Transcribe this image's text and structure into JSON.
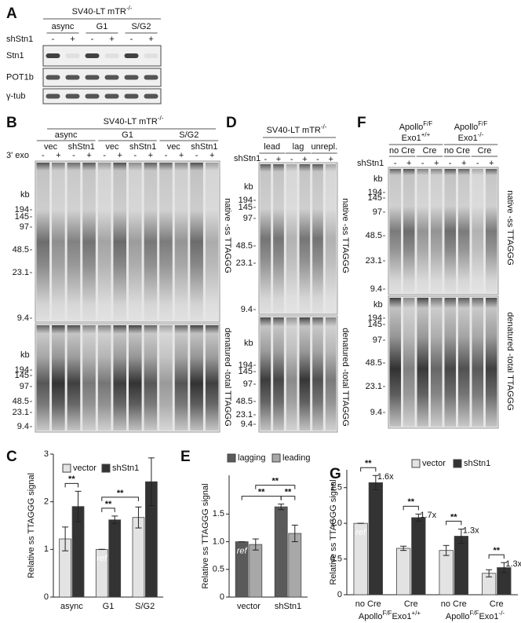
{
  "figure": {
    "panel_letters": [
      "A",
      "B",
      "C",
      "D",
      "E",
      "F",
      "G"
    ],
    "A": {
      "title": {
        "text": "SV40-LT mTR",
        "sup": "-/-"
      },
      "groups": [
        "async",
        "G1",
        "S/G2"
      ],
      "row_label": "shStn1",
      "signs": [
        "-",
        "+",
        "-",
        "+",
        "-",
        "+"
      ],
      "blots": [
        "Stn1",
        "POT1b",
        "γ-tub"
      ]
    },
    "B": {
      "title": {
        "text": "SV40-LT mTR",
        "sup": "-/-"
      },
      "groups": [
        "async",
        "G1",
        "S/G2"
      ],
      "subgroups": [
        "vec",
        "shStn1",
        "vec",
        "shStn1",
        "vec",
        "shStn1"
      ],
      "row_label": "3' exo",
      "signs": [
        "-",
        "+",
        "-",
        "+",
        "-",
        "+",
        "-",
        "+",
        "-",
        "+",
        "-",
        "+"
      ],
      "kb": [
        "kb",
        "kb"
      ],
      "markers_native": [
        "194",
        "145",
        "97",
        "48.5",
        "23.1",
        "9.4"
      ],
      "markers_denatured": [
        "194",
        "145",
        "97",
        "48.5",
        "23.1",
        "9.4"
      ],
      "side_labels": [
        "native -ss TTAGGG",
        "denatured -total TTAGGG"
      ]
    },
    "D": {
      "title": {
        "text": "SV40-LT mTR",
        "sup": "-/-"
      },
      "groups": [
        "lead",
        "lag",
        "unrepl."
      ],
      "row_label": "shStn1",
      "signs": [
        "-",
        "+",
        "-",
        "+",
        "-",
        "+"
      ],
      "kb": [
        "kb",
        "kb"
      ],
      "markers_native": [
        "194",
        "145",
        "97",
        "48.5",
        "23.1",
        "9.4"
      ],
      "markers_denatured": [
        "194",
        "145",
        "97",
        "48.5",
        "23.1",
        "9.4"
      ],
      "side_labels": [
        "native -ss TTAGGG",
        "denatured -total TTAGGG"
      ]
    },
    "F": {
      "groups": [
        {
          "line1": {
            "text": "Apollo",
            "sup": "F/F"
          },
          "line2": {
            "text": "Exo1",
            "sup": "+/+"
          }
        },
        {
          "line1": {
            "text": "Apollo",
            "sup": "F/F"
          },
          "line2": {
            "text": "Exo1",
            "sup": "-/-"
          }
        }
      ],
      "subgroups": [
        "no Cre",
        "Cre",
        "no Cre",
        "Cre"
      ],
      "row_label": "shStn1",
      "signs": [
        "-",
        "+",
        "-",
        "+",
        "-",
        "+",
        "-",
        "+"
      ],
      "kb": [
        "kb",
        "kb"
      ],
      "markers_native": [
        "194",
        "145",
        "97",
        "48.5",
        "23.1",
        "9.4"
      ],
      "markers_denatured": [
        "194",
        "145",
        "97",
        "48.5",
        "23.1",
        "9.4"
      ],
      "side_labels": [
        "native -ss TTAGGG",
        "denatured -total TTAGGG"
      ]
    }
  },
  "chart_data": [
    {
      "type": "bar",
      "ylabel": "Relative ss TTAGGG signal",
      "categories": [
        "async",
        "G1",
        "S/G2"
      ],
      "series": [
        {
          "name": "vector",
          "color": "#e3e3e3",
          "values": [
            1.22,
            1.0,
            1.67
          ],
          "errors": [
            0.25,
            0,
            0.22
          ]
        },
        {
          "name": "shStn1",
          "color": "#333333",
          "values": [
            1.9,
            1.62,
            2.42
          ],
          "errors": [
            0.32,
            0.08,
            0.5
          ]
        }
      ],
      "ylim": [
        0,
        3
      ],
      "yticks": [
        0,
        1,
        2,
        3
      ],
      "annotations": [
        {
          "text": "ref",
          "at": [
            0,
            1
          ]
        }
      ],
      "brackets": [
        {
          "label": "**",
          "from": [
            0,
            0
          ],
          "to": [
            1,
            0
          ]
        },
        {
          "label": "**",
          "from": [
            0,
            1
          ],
          "to": [
            1,
            1
          ]
        },
        {
          "label": "**",
          "from": [
            0,
            1
          ],
          "to": [
            0,
            2
          ]
        }
      ]
    },
    {
      "type": "bar",
      "ylabel": "Relative ss TTAGGG signal",
      "categories": [
        "vector",
        "shStn1"
      ],
      "series": [
        {
          "name": "lagging",
          "color": "#5a5a5a",
          "values": [
            1.0,
            1.63
          ],
          "errors": [
            0,
            0.05
          ]
        },
        {
          "name": "leading",
          "color": "#a8a8a8",
          "values": [
            0.95,
            1.15
          ],
          "errors": [
            0.1,
            0.15
          ]
        }
      ],
      "ylim": [
        0,
        2.2
      ],
      "yticks": [
        0,
        0.5,
        {
          "value": 1,
          "label": "1.0"
        },
        1.5
      ],
      "annotations": [
        {
          "text": "ref",
          "at": [
            0,
            0
          ]
        }
      ],
      "brackets": [
        {
          "label": "**",
          "from": [
            0,
            0
          ],
          "to": [
            0,
            1
          ]
        },
        {
          "label": "**",
          "from": [
            0,
            1
          ],
          "to": [
            1,
            1
          ]
        },
        {
          "label": "**",
          "from": [
            1,
            0
          ],
          "to": [
            1,
            1
          ]
        }
      ]
    },
    {
      "type": "bar",
      "ylabel": "Relative ss TTAGGG signal",
      "categories": [
        "no Cre",
        "Cre",
        "no Cre",
        "Cre"
      ],
      "series": [
        {
          "name": "vector",
          "color": "#e3e3e3",
          "values": [
            1.0,
            0.65,
            0.62,
            0.3
          ],
          "errors": [
            0,
            0.03,
            0.07,
            0.05
          ]
        },
        {
          "name": "shStn1",
          "color": "#333333",
          "values": [
            1.57,
            1.08,
            0.82,
            0.38
          ],
          "errors": [
            0.1,
            0.05,
            0.1,
            0.07
          ]
        }
      ],
      "ylim": [
        0,
        1.75
      ],
      "yticks": [
        0,
        0.5,
        {
          "value": 1,
          "label": "1.0"
        },
        1.5
      ],
      "annotations": [
        {
          "text": "ref",
          "at": [
            0,
            0
          ]
        }
      ],
      "groups": [
        {
          "label": [
            "Apollo",
            "F/F",
            "Exo1",
            "+/+"
          ],
          "span": [
            0,
            1
          ]
        },
        {
          "label": [
            "Apollo",
            "F/F",
            "Exo1",
            "-/-"
          ],
          "span": [
            2,
            3
          ]
        }
      ],
      "brackets": [
        {
          "label": "**",
          "note": "1.6x",
          "from": [
            0,
            0
          ],
          "to": [
            1,
            0
          ]
        },
        {
          "label": "**",
          "note": "1.7x",
          "from": [
            0,
            1
          ],
          "to": [
            1,
            1
          ]
        },
        {
          "label": "**",
          "note": "1.3x",
          "from": [
            0,
            2
          ],
          "to": [
            1,
            2
          ]
        },
        {
          "label": "**",
          "note": "1.3x",
          "from": [
            0,
            3
          ],
          "to": [
            1,
            3
          ]
        }
      ]
    }
  ]
}
